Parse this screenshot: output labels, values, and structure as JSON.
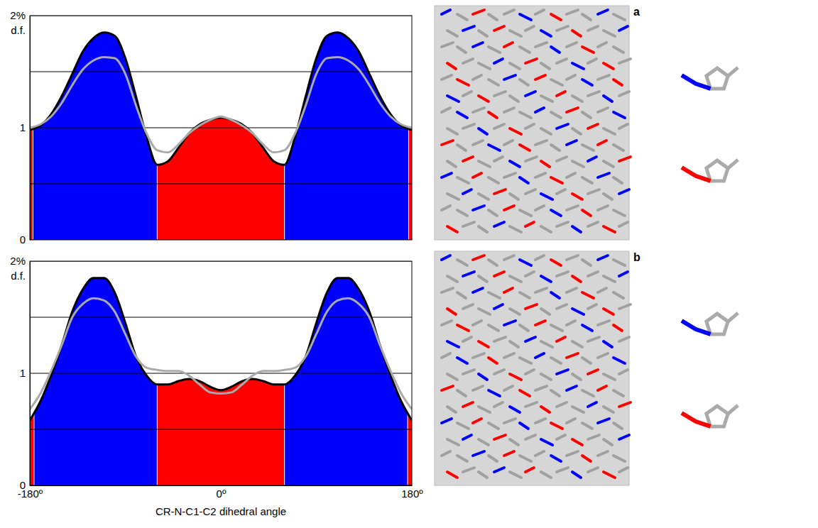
{
  "chart_data": [
    {
      "type": "area",
      "label": "a",
      "y_label": "d.f.",
      "x": [
        -180,
        -170,
        -160,
        -150,
        -140,
        -130,
        -120,
        -110,
        -100,
        -90,
        -80,
        -70,
        -60,
        -50,
        -40,
        -30,
        -20,
        -10,
        0,
        10,
        20,
        30,
        40,
        50,
        60,
        70,
        80,
        90,
        100,
        110,
        120,
        130,
        140,
        150,
        160,
        170,
        180
      ],
      "xlim": [
        -180,
        180
      ],
      "ylim": [
        0,
        2
      ],
      "yticks": [
        0,
        1,
        {
          "value": 2,
          "label": "2%"
        }
      ],
      "grid": true,
      "tick_labels": "y",
      "series": [
        {
          "color": "#000000",
          "values": [
            0.98,
            1.02,
            1.12,
            1.28,
            1.48,
            1.68,
            1.8,
            1.85,
            1.82,
            1.62,
            1.28,
            0.92,
            0.67,
            0.7,
            0.82,
            0.95,
            1.03,
            1.07,
            1.09,
            1.07,
            1.03,
            0.95,
            0.82,
            0.7,
            0.67,
            0.92,
            1.28,
            1.62,
            1.82,
            1.85,
            1.8,
            1.68,
            1.48,
            1.28,
            1.12,
            1.02,
            0.98
          ]
        },
        {
          "color": "#aaaaaa",
          "values": [
            1.0,
            1.03,
            1.1,
            1.22,
            1.38,
            1.52,
            1.6,
            1.63,
            1.62,
            1.48,
            1.2,
            0.95,
            0.8,
            0.78,
            0.85,
            0.95,
            1.02,
            1.07,
            1.1,
            1.07,
            1.02,
            0.95,
            0.85,
            0.78,
            0.8,
            0.95,
            1.2,
            1.48,
            1.62,
            1.63,
            1.6,
            1.52,
            1.38,
            1.22,
            1.1,
            1.03,
            1.0
          ]
        }
      ],
      "regions": [
        {
          "from": -180,
          "to": -177,
          "color": "#ff0000"
        },
        {
          "from": -177,
          "to": -60,
          "color": "#0000ff"
        },
        {
          "from": -60,
          "to": 60,
          "color": "#ff0000"
        },
        {
          "from": 60,
          "to": 177,
          "color": "#0000ff"
        },
        {
          "from": 177,
          "to": 180,
          "color": "#ff0000"
        }
      ]
    },
    {
      "type": "area",
      "label": "b",
      "y_label": "d.f.",
      "x_label": "CR-N-C1-C2 dihedral angle",
      "x": [
        -180,
        -170,
        -160,
        -150,
        -140,
        -130,
        -120,
        -110,
        -100,
        -90,
        -80,
        -70,
        -60,
        -50,
        -40,
        -30,
        -20,
        -10,
        0,
        10,
        20,
        30,
        40,
        50,
        60,
        70,
        80,
        90,
        100,
        110,
        120,
        130,
        140,
        150,
        160,
        170,
        180
      ],
      "xlim": [
        -180,
        180
      ],
      "ylim": [
        0,
        2
      ],
      "xticks": [
        {
          "value": -180,
          "label": "-180º"
        },
        {
          "value": 0,
          "label": "0º"
        },
        {
          "value": 180,
          "label": "180º"
        }
      ],
      "yticks": [
        0,
        1,
        {
          "value": 2,
          "label": "2%"
        }
      ],
      "grid": true,
      "series": [
        {
          "color": "#000000",
          "values": [
            0.58,
            0.75,
            0.98,
            1.25,
            1.55,
            1.75,
            1.85,
            1.85,
            1.72,
            1.45,
            1.15,
            0.98,
            0.9,
            0.9,
            0.93,
            0.95,
            0.93,
            0.88,
            0.85,
            0.88,
            0.93,
            0.95,
            0.93,
            0.9,
            0.9,
            0.98,
            1.15,
            1.45,
            1.72,
            1.85,
            1.85,
            1.75,
            1.55,
            1.25,
            0.98,
            0.75,
            0.58
          ]
        },
        {
          "color": "#aaaaaa",
          "values": [
            0.68,
            0.82,
            1.02,
            1.25,
            1.5,
            1.62,
            1.67,
            1.65,
            1.55,
            1.35,
            1.15,
            1.05,
            1.03,
            1.02,
            1.02,
            0.98,
            0.9,
            0.83,
            0.82,
            0.83,
            0.9,
            0.98,
            1.02,
            1.02,
            1.03,
            1.05,
            1.15,
            1.35,
            1.55,
            1.65,
            1.67,
            1.62,
            1.5,
            1.25,
            1.02,
            0.82,
            0.68
          ]
        }
      ],
      "regions": [
        {
          "from": -180,
          "to": -176,
          "color": "#ff0000"
        },
        {
          "from": -176,
          "to": -60,
          "color": "#0000ff"
        },
        {
          "from": -60,
          "to": 60,
          "color": "#ff0000"
        },
        {
          "from": 60,
          "to": 176,
          "color": "#0000ff"
        },
        {
          "from": 176,
          "to": 180,
          "color": "#ff0000"
        }
      ]
    }
  ]
}
